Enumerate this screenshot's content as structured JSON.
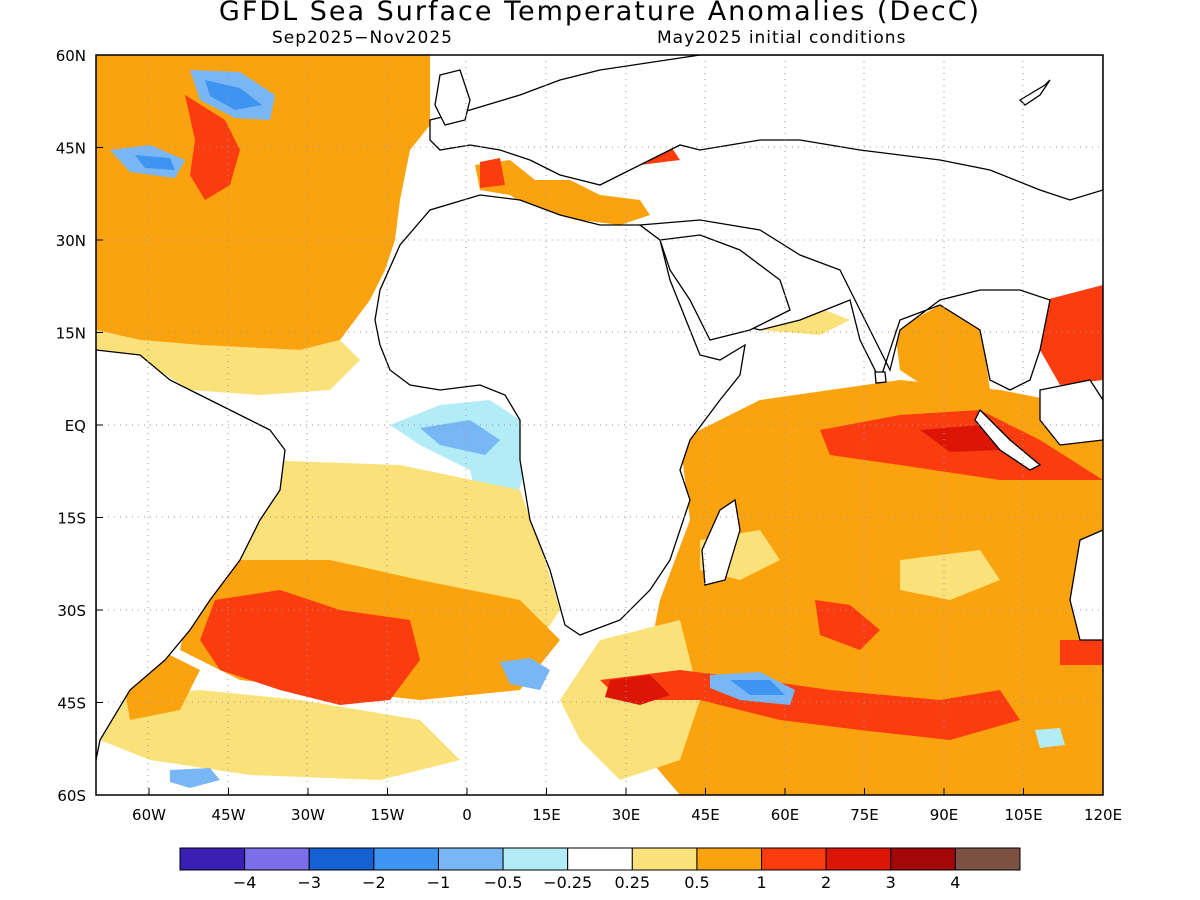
{
  "title": "GFDL Sea Surface Temperature Anomalies (DecC)",
  "period": "Sep2025−Nov2025",
  "initial_conditions": "May2025 initial conditions",
  "axes": {
    "lon_ticks": [
      "60W",
      "45W",
      "30W",
      "15W",
      "0",
      "15E",
      "30E",
      "45E",
      "60E",
      "75E",
      "90E",
      "105E",
      "120E"
    ],
    "lat_ticks": [
      "60N",
      "45N",
      "30N",
      "15N",
      "EQ",
      "15S",
      "30S",
      "45S",
      "60S"
    ],
    "lon_range": [
      -70,
      120
    ],
    "lat_range": [
      -60,
      60
    ]
  },
  "colorbar": {
    "colors": [
      "#3a1fb4",
      "#7b6ee8",
      "#1560d2",
      "#3e95f1",
      "#79b6f6",
      "#b1ecf7",
      "#ffffff",
      "#fbe17a",
      "#fba20f",
      "#fa3c0e",
      "#dc1507",
      "#a30707",
      "#7a5142"
    ],
    "labels": [
      "−4",
      "−3",
      "−2",
      "−1",
      "−0.5",
      "−0.25",
      "0.25",
      "0.5",
      "1",
      "2",
      "3",
      "4"
    ]
  }
}
